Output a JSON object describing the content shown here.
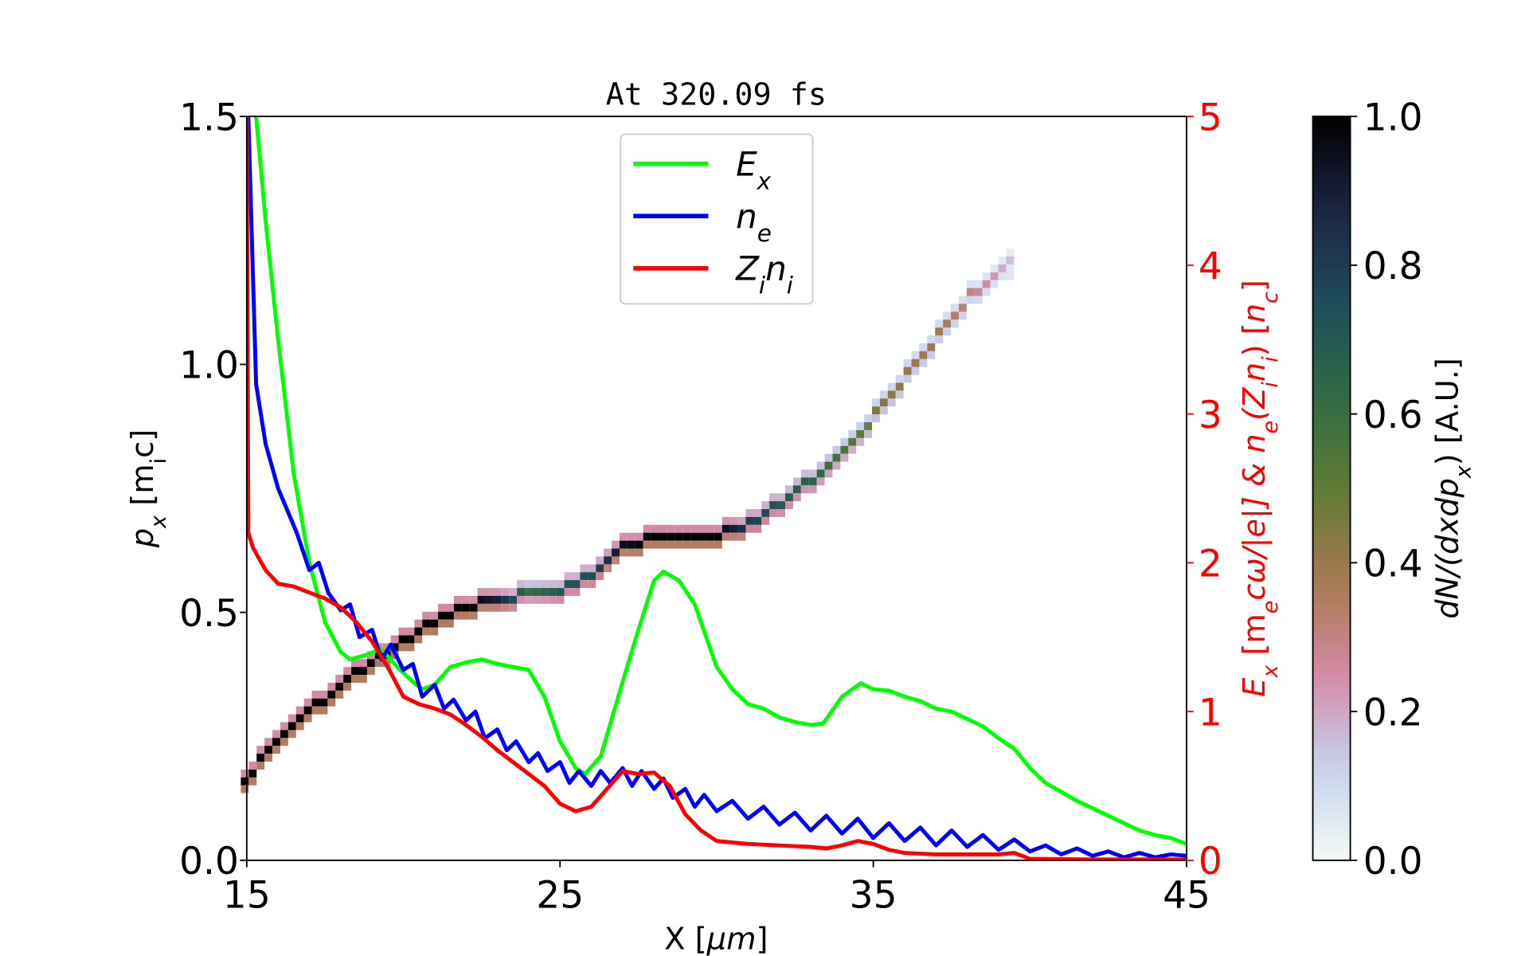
{
  "chart_data": {
    "type": "line",
    "title": "At 320.09 fs",
    "xlabel": [
      [
        "X  [",
        ""
      ],
      [
        "μm",
        "i"
      ],
      [
        "]",
        ""
      ]
    ],
    "ylabel": [
      [
        "p",
        "i"
      ],
      [
        "x",
        "sub-i"
      ],
      [
        "  [m",
        ""
      ],
      [
        "i",
        "sub"
      ],
      [
        "c]",
        ""
      ]
    ],
    "y2label": [
      [
        "E",
        "i"
      ],
      [
        "x",
        "sub-i"
      ],
      [
        "  [m",
        ""
      ],
      [
        "e",
        "sub-i"
      ],
      [
        "cω/|e|]  &  ",
        "i"
      ],
      [
        "n",
        "i"
      ],
      [
        "e",
        "sub-i"
      ],
      [
        "(Z",
        "i"
      ],
      [
        "i",
        "sub-i"
      ],
      [
        "n",
        "i"
      ],
      [
        "i",
        "sub-i"
      ],
      [
        ")  [",
        ""
      ],
      [
        "n",
        "i"
      ],
      [
        "c",
        "sub-i"
      ],
      [
        "]",
        ""
      ]
    ],
    "colorbar_label": [
      [
        "dN/(dxdp",
        "i"
      ],
      [
        "x",
        "sub-i"
      ],
      [
        ")  [A.U.]",
        ""
      ]
    ],
    "xlim": [
      15,
      45
    ],
    "ylim": [
      0,
      1.5
    ],
    "y2lim": [
      0,
      5
    ],
    "clim": [
      0,
      1
    ],
    "xticks": [
      "15",
      "25",
      "35",
      "45"
    ],
    "yticks": [
      "0.0",
      "0.5",
      "1.0",
      "1.5"
    ],
    "y2ticks": [
      "0",
      "1",
      "2",
      "3",
      "4",
      "5"
    ],
    "cticks": [
      "0.0",
      "0.2",
      "0.4",
      "0.6",
      "0.8",
      "1.0"
    ],
    "grid": false,
    "legend_placement": "top-center",
    "colormap": [
      "#f4faf2",
      "#c5d2f0",
      "#d48aa6",
      "#a8794f",
      "#5f7b34",
      "#2f6a45",
      "#1f4c5a",
      "#1c2444",
      "#000000"
    ],
    "y2_axis_color": "#ff0000",
    "series": [
      {
        "name": "E_x",
        "legend": [
          [
            "E",
            "i"
          ],
          [
            "x",
            "sub-i"
          ]
        ],
        "axis": "right",
        "color": "#00ff00",
        "x": [
          15.3,
          15.6,
          16,
          16.5,
          17,
          17.5,
          18,
          18.3,
          18.8,
          19.3,
          19.8,
          20.3,
          20.6,
          21,
          21.5,
          22,
          22.5,
          23,
          23.5,
          24,
          24.5,
          25,
          25.5,
          25.8,
          26.3,
          27,
          27.5,
          28,
          28.3,
          28.8,
          29.3,
          30,
          30.5,
          31,
          31.5,
          32,
          32.5,
          33,
          33.4,
          34,
          34.6,
          35,
          35.5,
          36,
          36.5,
          37,
          37.5,
          38,
          38.5,
          39,
          39.5,
          40,
          40.5,
          41,
          41.5,
          42,
          42.5,
          43,
          43.5,
          44,
          44.5,
          45
        ],
        "y": [
          5,
          4.3,
          3.5,
          2.6,
          2.0,
          1.6,
          1.4,
          1.35,
          1.38,
          1.42,
          1.3,
          1.2,
          1.15,
          1.18,
          1.3,
          1.33,
          1.35,
          1.32,
          1.3,
          1.28,
          1.1,
          0.8,
          0.62,
          0.58,
          0.7,
          1.2,
          1.55,
          1.88,
          1.94,
          1.88,
          1.72,
          1.3,
          1.15,
          1.05,
          1.02,
          0.96,
          0.93,
          0.91,
          0.92,
          1.1,
          1.19,
          1.15,
          1.14,
          1.1,
          1.07,
          1.02,
          1.0,
          0.95,
          0.9,
          0.82,
          0.75,
          0.62,
          0.52,
          0.46,
          0.4,
          0.35,
          0.3,
          0.25,
          0.2,
          0.17,
          0.15,
          0.11
        ]
      },
      {
        "name": "n_e",
        "legend": [
          [
            "n",
            "i"
          ],
          [
            "e",
            "sub-i"
          ]
        ],
        "axis": "right",
        "color": "#0000ff",
        "x": [
          15.05,
          15.3,
          15.6,
          16,
          16.3,
          16.6,
          17,
          17.3,
          17.6,
          18,
          18.3,
          18.6,
          19,
          19.3,
          19.6,
          20,
          20.3,
          20.6,
          21,
          21.3,
          21.6,
          22,
          22.3,
          22.6,
          23,
          23.3,
          23.6,
          24,
          24.3,
          24.6,
          25,
          25.3,
          25.6,
          26,
          26.3,
          26.6,
          27,
          27.3,
          27.6,
          28,
          28.3,
          28.6,
          29,
          29.3,
          29.6,
          30,
          30.5,
          31,
          31.5,
          32,
          32.5,
          33,
          33.5,
          34,
          34.5,
          35,
          35.5,
          36,
          36.5,
          37,
          37.5,
          38,
          38.5,
          39,
          39.5,
          40,
          40.5,
          41,
          41.5,
          42,
          42.5,
          43,
          43.5,
          44,
          44.5,
          45
        ],
        "y": [
          5,
          3.2,
          2.8,
          2.5,
          2.35,
          2.2,
          1.95,
          2.0,
          1.8,
          1.68,
          1.72,
          1.5,
          1.55,
          1.35,
          1.45,
          1.28,
          1.32,
          1.1,
          1.18,
          1.02,
          1.08,
          0.94,
          1.0,
          0.82,
          0.88,
          0.74,
          0.8,
          0.66,
          0.72,
          0.6,
          0.66,
          0.52,
          0.6,
          0.5,
          0.6,
          0.52,
          0.62,
          0.5,
          0.6,
          0.48,
          0.55,
          0.42,
          0.48,
          0.36,
          0.44,
          0.33,
          0.4,
          0.28,
          0.36,
          0.24,
          0.32,
          0.2,
          0.3,
          0.18,
          0.28,
          0.15,
          0.25,
          0.13,
          0.22,
          0.1,
          0.2,
          0.09,
          0.17,
          0.07,
          0.14,
          0.06,
          0.1,
          0.04,
          0.08,
          0.03,
          0.06,
          0.02,
          0.05,
          0.02,
          0.04,
          0.03
        ]
      },
      {
        "name": "Z_i n_i",
        "legend": [
          [
            "Z",
            "i"
          ],
          [
            "i",
            "sub-i"
          ],
          [
            "n",
            "i"
          ],
          [
            "i",
            "sub-i"
          ]
        ],
        "axis": "right",
        "color": "#ff0000",
        "x": [
          15,
          15.05,
          15.2,
          15.6,
          16,
          16.5,
          17,
          17.5,
          18,
          18.5,
          19,
          19.5,
          20,
          20.5,
          21,
          21.5,
          22,
          22.5,
          23,
          23.5,
          24,
          24.5,
          25,
          25.5,
          26,
          26.5,
          27,
          27.5,
          28,
          28.5,
          29,
          29.5,
          30,
          31,
          32,
          33,
          33.5,
          34,
          34.5,
          35,
          35.5,
          36,
          37,
          38,
          39,
          39.5,
          40,
          42,
          45
        ],
        "y": [
          5,
          2.2,
          2.1,
          1.95,
          1.86,
          1.84,
          1.8,
          1.76,
          1.7,
          1.6,
          1.47,
          1.3,
          1.1,
          1.05,
          1.02,
          0.98,
          0.91,
          0.83,
          0.74,
          0.66,
          0.58,
          0.5,
          0.38,
          0.33,
          0.36,
          0.48,
          0.6,
          0.58,
          0.59,
          0.5,
          0.31,
          0.2,
          0.13,
          0.11,
          0.1,
          0.09,
          0.08,
          0.1,
          0.13,
          0.11,
          0.07,
          0.05,
          0.04,
          0.04,
          0.04,
          0.05,
          0.01,
          0.005,
          0.005
        ]
      },
      {
        "name": "ion phase space",
        "axis": "left",
        "kind": "heatmap-trace",
        "x": [
          15,
          16,
          17,
          18,
          19,
          20,
          21,
          22,
          23,
          24,
          25,
          26,
          27,
          28,
          29,
          30,
          31,
          32,
          33,
          34,
          35,
          36,
          37,
          38,
          39,
          39.5
        ],
        "y": [
          0.16,
          0.24,
          0.3,
          0.35,
          0.4,
          0.44,
          0.48,
          0.51,
          0.53,
          0.535,
          0.54,
          0.58,
          0.63,
          0.65,
          0.65,
          0.655,
          0.68,
          0.72,
          0.77,
          0.83,
          0.9,
          0.98,
          1.06,
          1.14,
          1.19,
          1.21
        ],
        "density": [
          1,
          1,
          1,
          1,
          1,
          1,
          1,
          1,
          0.9,
          0.6,
          0.7,
          0.75,
          0.95,
          1,
          1,
          1,
          0.8,
          0.7,
          0.65,
          0.55,
          0.45,
          0.4,
          0.38,
          0.3,
          0.2,
          0.15
        ]
      }
    ]
  }
}
